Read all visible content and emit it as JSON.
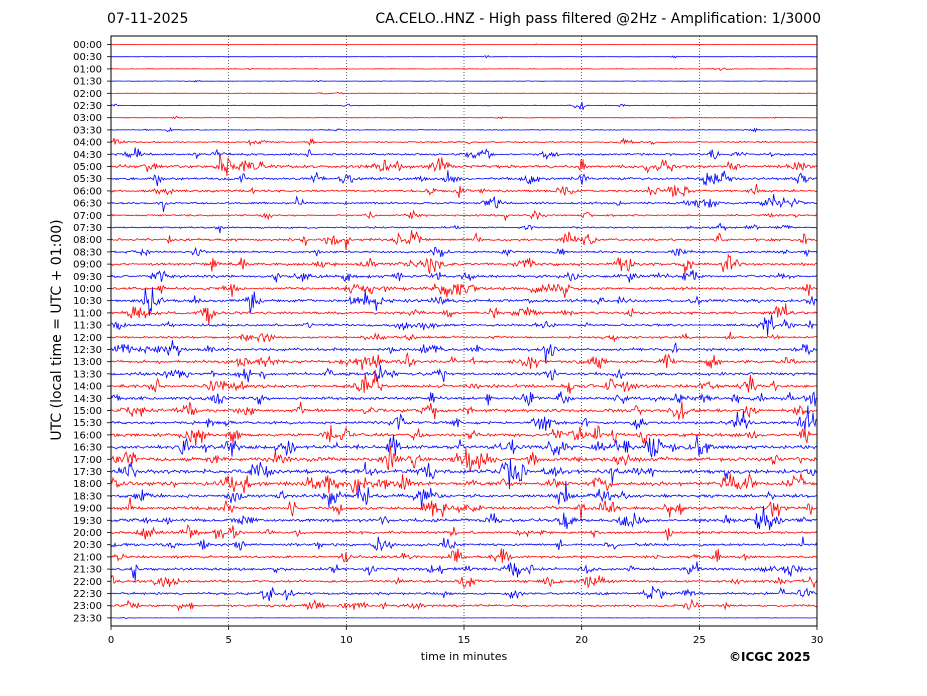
{
  "header": {
    "date": "07-11-2025",
    "title": "CA.CELO..HNZ - High pass filtered @2Hz - Amplification: 1/3000"
  },
  "footer": {
    "copyright": "©ICGC 2025"
  },
  "chart_data": {
    "type": "line",
    "title": "CA.CELO..HNZ - High pass filtered @2Hz - Amplification: 1/3000",
    "xlabel": "time in minutes",
    "ylabel": "UTC (local time = UTC + 01:00)",
    "xlim": [
      0,
      30
    ],
    "xticks": [
      0,
      5,
      10,
      15,
      20,
      25,
      30
    ],
    "vertical_gridlines": [
      5,
      10,
      15,
      20,
      25
    ],
    "grid": "vertical dotted",
    "row_labels": [
      "00:00",
      "00:30",
      "01:00",
      "01:30",
      "02:00",
      "02:30",
      "03:00",
      "03:30",
      "04:00",
      "04:30",
      "05:00",
      "05:30",
      "06:00",
      "06:30",
      "07:00",
      "07:30",
      "08:00",
      "08:30",
      "09:00",
      "09:30",
      "10:00",
      "10:30",
      "11:00",
      "11:30",
      "12:00",
      "12:30",
      "13:00",
      "13:30",
      "14:00",
      "14:30",
      "15:00",
      "15:30",
      "16:00",
      "16:30",
      "17:00",
      "17:30",
      "18:00",
      "18:30",
      "19:00",
      "19:30",
      "20:00",
      "20:30",
      "21:00",
      "21:30",
      "22:00",
      "22:30",
      "23:00",
      "23:30"
    ],
    "row_colors": [
      "#ff0000",
      "#0000ff"
    ],
    "row_activity": [
      0.3,
      0.35,
      0.6,
      0.55,
      0.6,
      0.7,
      0.65,
      0.8,
      1.6,
      2.4,
      3.5,
      2.8,
      2.5,
      2.4,
      2.0,
      1.8,
      2.8,
      2.2,
      3.3,
      3.2,
      3.2,
      3.4,
      3.0,
      2.8,
      2.4,
      3.0,
      3.5,
      3.2,
      3.6,
      3.4,
      3.6,
      3.2,
      3.6,
      4.2,
      4.3,
      4.2,
      4.2,
      3.8,
      3.6,
      3.6,
      3.0,
      2.8,
      2.6,
      3.0,
      2.8,
      2.6,
      2.4,
      0.3
    ],
    "events": [
      {
        "row": 1,
        "minute": 16.0,
        "amp": 4
      },
      {
        "row": 1,
        "minute": 24.0,
        "amp": 4
      },
      {
        "row": 5,
        "minute": 20.0,
        "amp": 7
      },
      {
        "row": 5,
        "minute": 21.7,
        "amp": 4
      },
      {
        "row": 7,
        "minute": 2.5,
        "amp": 5
      },
      {
        "row": 8,
        "minute": 8.5,
        "amp": 5
      },
      {
        "row": 9,
        "minute": 25.6,
        "amp": 14
      },
      {
        "row": 10,
        "minute": 5.0,
        "amp": 8
      },
      {
        "row": 10,
        "minute": 20.0,
        "amp": 12
      },
      {
        "row": 11,
        "minute": 5.6,
        "amp": 11
      },
      {
        "row": 13,
        "minute": 2.2,
        "amp": 22
      },
      {
        "row": 13,
        "minute": 29.0,
        "amp": 9
      },
      {
        "row": 15,
        "minute": 4.6,
        "amp": 6
      },
      {
        "row": 16,
        "minute": 10.0,
        "amp": 15
      },
      {
        "row": 16,
        "minute": 12.7,
        "amp": 14
      },
      {
        "row": 16,
        "minute": 15.6,
        "amp": 16
      },
      {
        "row": 17,
        "minute": 29.5,
        "amp": 15
      },
      {
        "row": 18,
        "minute": 5.6,
        "amp": 12
      },
      {
        "row": 19,
        "minute": 24.8,
        "amp": 8
      },
      {
        "row": 22,
        "minute": 22.1,
        "amp": 10
      },
      {
        "row": 23,
        "minute": 28.8,
        "amp": 9
      },
      {
        "row": 25,
        "minute": 2.0,
        "amp": 8
      },
      {
        "row": 25,
        "minute": 18.5,
        "amp": 7
      },
      {
        "row": 26,
        "minute": 9.9,
        "amp": 12
      },
      {
        "row": 26,
        "minute": 23.5,
        "amp": 10
      },
      {
        "row": 27,
        "minute": 5.8,
        "amp": 11
      },
      {
        "row": 28,
        "minute": 19.5,
        "amp": 10
      },
      {
        "row": 29,
        "minute": 16.0,
        "amp": 13
      },
      {
        "row": 29,
        "minute": 23.2,
        "amp": 9
      },
      {
        "row": 30,
        "minute": 0.5,
        "amp": 8
      },
      {
        "row": 31,
        "minute": 26.9,
        "amp": 16
      },
      {
        "row": 33,
        "minute": 4.0,
        "amp": 6
      },
      {
        "row": 33,
        "minute": 9.5,
        "amp": 6
      },
      {
        "row": 33,
        "minute": 12.0,
        "amp": 6
      },
      {
        "row": 34,
        "minute": 13.0,
        "amp": 9
      },
      {
        "row": 35,
        "minute": 23.0,
        "amp": 10
      },
      {
        "row": 36,
        "minute": 8.8,
        "amp": 11
      },
      {
        "row": 37,
        "minute": 28.0,
        "amp": 10
      },
      {
        "row": 40,
        "minute": 4.5,
        "amp": 6
      },
      {
        "row": 41,
        "minute": 8.8,
        "amp": 10
      },
      {
        "row": 41,
        "minute": 14.2,
        "amp": 12
      },
      {
        "row": 43,
        "minute": 1.0,
        "amp": 14
      },
      {
        "row": 43,
        "minute": 22.1,
        "amp": 8
      },
      {
        "row": 44,
        "minute": 15.5,
        "amp": 8
      },
      {
        "row": 46,
        "minute": 3.4,
        "amp": 7
      }
    ]
  }
}
